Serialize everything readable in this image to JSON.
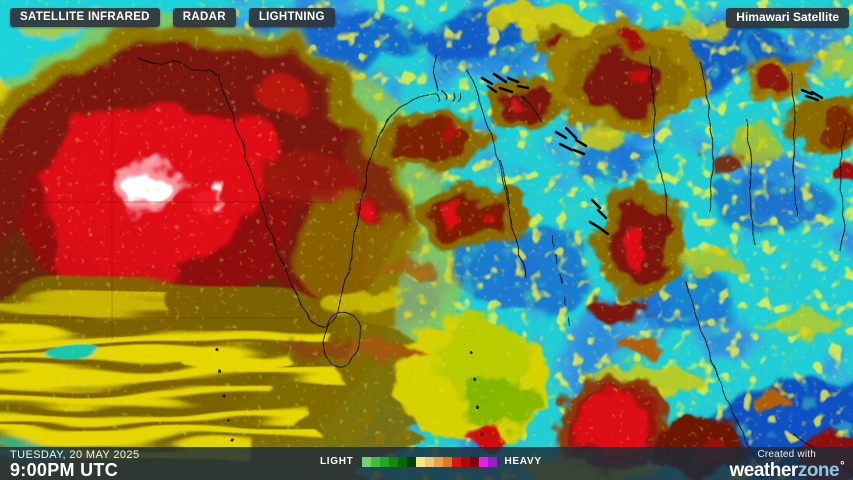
{
  "toolbar": {
    "buttons": [
      {
        "label": "SATELLITE INFRARED"
      },
      {
        "label": "RADAR"
      },
      {
        "label": "LIGHTNING"
      }
    ]
  },
  "source_badge": {
    "label": "Himawari Satellite"
  },
  "timestamp": {
    "date": "TUESDAY, 20 MAY 2025",
    "time": "9:00PM UTC"
  },
  "legend": {
    "light_label": "LIGHT",
    "heavy_label": "HEAVY",
    "colors": [
      "#74d474",
      "#44bc44",
      "#27a427",
      "#128812",
      "#086808",
      "#034203",
      "#f3eb80",
      "#eec87a",
      "#eaa24d",
      "#e07a20",
      "#d91414",
      "#ad0a0a",
      "#7e0303",
      "#e622e6",
      "#9c1ec8"
    ]
  },
  "branding": {
    "created_with": "Created with",
    "brand_primary": "weather",
    "brand_secondary": "zone",
    "degree_mark": "°"
  },
  "map": {
    "palette": {
      "background_cyan": "#1fced6",
      "clear_blue": "#0f58c6",
      "light_cloud_yellow": "#e2d200",
      "moderate_olive": "#8f7a00",
      "deep_convection_maroon": "#7a150e",
      "intense_red": "#e00d18",
      "overshooting_top_white": "#ffffff"
    }
  }
}
